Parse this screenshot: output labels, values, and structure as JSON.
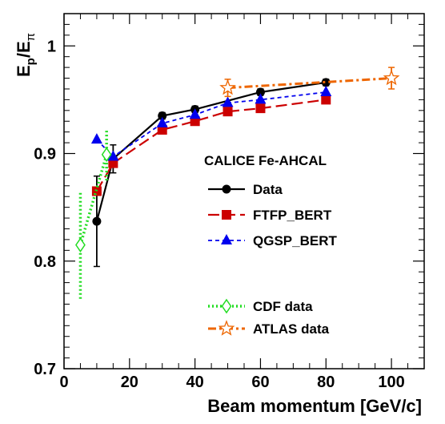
{
  "chart_data": {
    "type": "line",
    "title": "",
    "xlabel": "Beam momentum [GeV/c]",
    "ylabel": {
      "main": "E",
      "sub1": "p",
      "slash": "/E",
      "sub2": "π"
    },
    "xlim": [
      0,
      110
    ],
    "ylim": [
      0.7,
      1.03
    ],
    "x_ticks": [
      "0",
      "20",
      "40",
      "60",
      "80",
      "100"
    ],
    "y_ticks": [
      "0.7",
      "0.8",
      "0.9",
      "1"
    ],
    "legend_header": "CALICE Fe-AHCAL",
    "colors": {
      "data": "#000000",
      "ftfp": "#cc0000",
      "qgsp": "#0000ee",
      "cdf": "#22dd22",
      "atlas": "#ee6600"
    },
    "series": [
      {
        "name": "Data",
        "key": "data",
        "marker": "circle",
        "x": [
          10,
          15,
          30,
          40,
          60,
          80
        ],
        "y": [
          0.837,
          0.895,
          0.935,
          0.941,
          0.957,
          0.966
        ],
        "err": [
          0.042,
          0.013,
          0.003,
          0.003,
          0.003,
          0.003
        ]
      },
      {
        "name": "FTFP_BERT",
        "key": "ftfp",
        "marker": "square",
        "x": [
          10,
          15,
          30,
          40,
          50,
          60,
          80
        ],
        "y": [
          0.865,
          0.891,
          0.922,
          0.93,
          0.939,
          0.942,
          0.95
        ]
      },
      {
        "name": "QGSP_BERT",
        "key": "qgsp",
        "marker": "triangle",
        "x": [
          10,
          15,
          30,
          40,
          50,
          60,
          80
        ],
        "y": [
          0.913,
          0.897,
          0.928,
          0.936,
          0.947,
          0.95,
          0.957
        ]
      },
      {
        "name": "CDF data",
        "key": "cdf",
        "marker": "diamond",
        "x": [
          5,
          13
        ],
        "y": [
          0.815,
          0.899
        ],
        "err": [
          0.05,
          0.024
        ]
      },
      {
        "name": "ATLAS data",
        "key": "atlas",
        "marker": "star",
        "x": [
          50,
          100
        ],
        "y": [
          0.961,
          0.97
        ],
        "err": [
          0.008,
          0.01
        ]
      }
    ]
  }
}
